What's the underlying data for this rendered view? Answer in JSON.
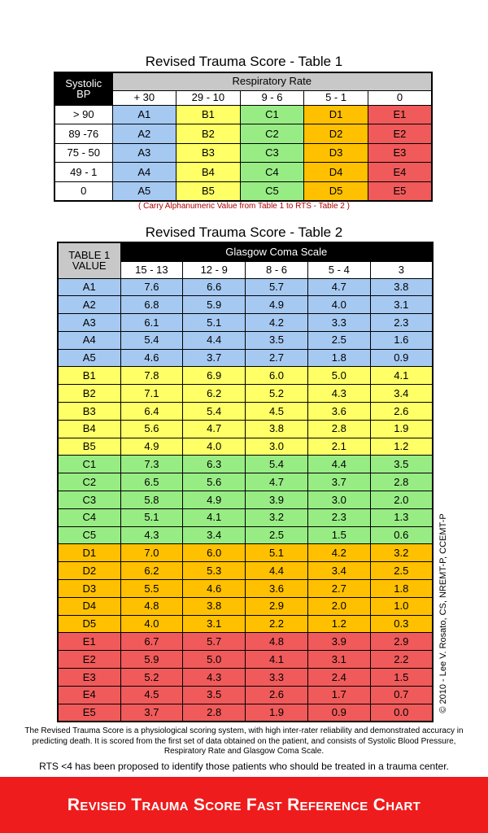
{
  "table1": {
    "title": "Revised Trauma Score - Table 1",
    "corner": "Systolic BP",
    "group_header": "Respiratory Rate",
    "columns": [
      "+ 30",
      "29 - 10",
      "9 - 6",
      "5 - 1",
      "0"
    ],
    "rows": [
      {
        "label": "> 90",
        "cells": [
          "A1",
          "B1",
          "C1",
          "D1",
          "E1"
        ]
      },
      {
        "label": "89 -76",
        "cells": [
          "A2",
          "B2",
          "C2",
          "D2",
          "E2"
        ]
      },
      {
        "label": "75 - 50",
        "cells": [
          "A3",
          "B3",
          "C3",
          "D3",
          "E3"
        ]
      },
      {
        "label": "49 - 1",
        "cells": [
          "A4",
          "B4",
          "C4",
          "D4",
          "E4"
        ]
      },
      {
        "label": "0",
        "cells": [
          "A5",
          "B5",
          "C5",
          "D5",
          "E5"
        ]
      }
    ],
    "note": "( Carry Alphanumeric Value from Table 1 to RTS - Table 2 )"
  },
  "table2": {
    "title": "Revised Trauma Score - Table 2",
    "corner": "TABLE 1 VALUE",
    "group_header": "Glasgow Coma Scale",
    "columns": [
      "15 - 13",
      "12 - 9",
      "8 - 6",
      "5 - 4",
      "3"
    ],
    "rows": [
      {
        "label": "A1",
        "cells": [
          "7.6",
          "6.6",
          "5.7",
          "4.7",
          "3.8"
        ]
      },
      {
        "label": "A2",
        "cells": [
          "6.8",
          "5.9",
          "4.9",
          "4.0",
          "3.1"
        ]
      },
      {
        "label": "A3",
        "cells": [
          "6.1",
          "5.1",
          "4.2",
          "3.3",
          "2.3"
        ]
      },
      {
        "label": "A4",
        "cells": [
          "5.4",
          "4.4",
          "3.5",
          "2.5",
          "1.6"
        ]
      },
      {
        "label": "A5",
        "cells": [
          "4.6",
          "3.7",
          "2.7",
          "1.8",
          "0.9"
        ]
      },
      {
        "label": "B1",
        "cells": [
          "7.8",
          "6.9",
          "6.0",
          "5.0",
          "4.1"
        ]
      },
      {
        "label": "B2",
        "cells": [
          "7.1",
          "6.2",
          "5.2",
          "4.3",
          "3.4"
        ]
      },
      {
        "label": "B3",
        "cells": [
          "6.4",
          "5.4",
          "4.5",
          "3.6",
          "2.6"
        ]
      },
      {
        "label": "B4",
        "cells": [
          "5.6",
          "4.7",
          "3.8",
          "2.8",
          "1.9"
        ]
      },
      {
        "label": "B5",
        "cells": [
          "4.9",
          "4.0",
          "3.0",
          "2.1",
          "1.2"
        ]
      },
      {
        "label": "C1",
        "cells": [
          "7.3",
          "6.3",
          "5.4",
          "4.4",
          "3.5"
        ]
      },
      {
        "label": "C2",
        "cells": [
          "6.5",
          "5.6",
          "4.7",
          "3.7",
          "2.8"
        ]
      },
      {
        "label": "C3",
        "cells": [
          "5.8",
          "4.9",
          "3.9",
          "3.0",
          "2.0"
        ]
      },
      {
        "label": "C4",
        "cells": [
          "5.1",
          "4.1",
          "3.2",
          "2.3",
          "1.3"
        ]
      },
      {
        "label": "C5",
        "cells": [
          "4.3",
          "3.4",
          "2.5",
          "1.5",
          "0.6"
        ]
      },
      {
        "label": "D1",
        "cells": [
          "7.0",
          "6.0",
          "5.1",
          "4.2",
          "3.2"
        ]
      },
      {
        "label": "D2",
        "cells": [
          "6.2",
          "5.3",
          "4.4",
          "3.4",
          "2.5"
        ]
      },
      {
        "label": "D3",
        "cells": [
          "5.5",
          "4.6",
          "3.6",
          "2.7",
          "1.8"
        ]
      },
      {
        "label": "D4",
        "cells": [
          "4.8",
          "3.8",
          "2.9",
          "2.0",
          "1.0"
        ]
      },
      {
        "label": "D5",
        "cells": [
          "4.0",
          "3.1",
          "2.2",
          "1.2",
          "0.3"
        ]
      },
      {
        "label": "E1",
        "cells": [
          "6.7",
          "5.7",
          "4.8",
          "3.9",
          "2.9"
        ]
      },
      {
        "label": "E2",
        "cells": [
          "5.9",
          "5.0",
          "4.1",
          "3.1",
          "2.2"
        ]
      },
      {
        "label": "E3",
        "cells": [
          "5.2",
          "4.3",
          "3.3",
          "2.4",
          "1.5"
        ]
      },
      {
        "label": "E4",
        "cells": [
          "4.5",
          "3.5",
          "2.6",
          "1.7",
          "0.7"
        ]
      },
      {
        "label": "E5",
        "cells": [
          "3.7",
          "2.8",
          "1.9",
          "0.9",
          "0.0"
        ]
      }
    ]
  },
  "copyright": "© 2010 - Lee V. Rosato, CS, NREMT-P, CCEMT-P",
  "description": "The Revised Trauma Score is a physiological scoring system, with high inter-rater reliability and demonstrated accuracy in predicting death. It is scored from the first set of data obtained on the patient, and consists of Systolic Blood Pressure, Respiratory Rate and Glasgow Coma Scale.",
  "rts_note": "RTS <4 has been proposed to identify those patients who should be treated in a trauma center.",
  "banner": "Revised Trauma Score Fast Reference Chart"
}
